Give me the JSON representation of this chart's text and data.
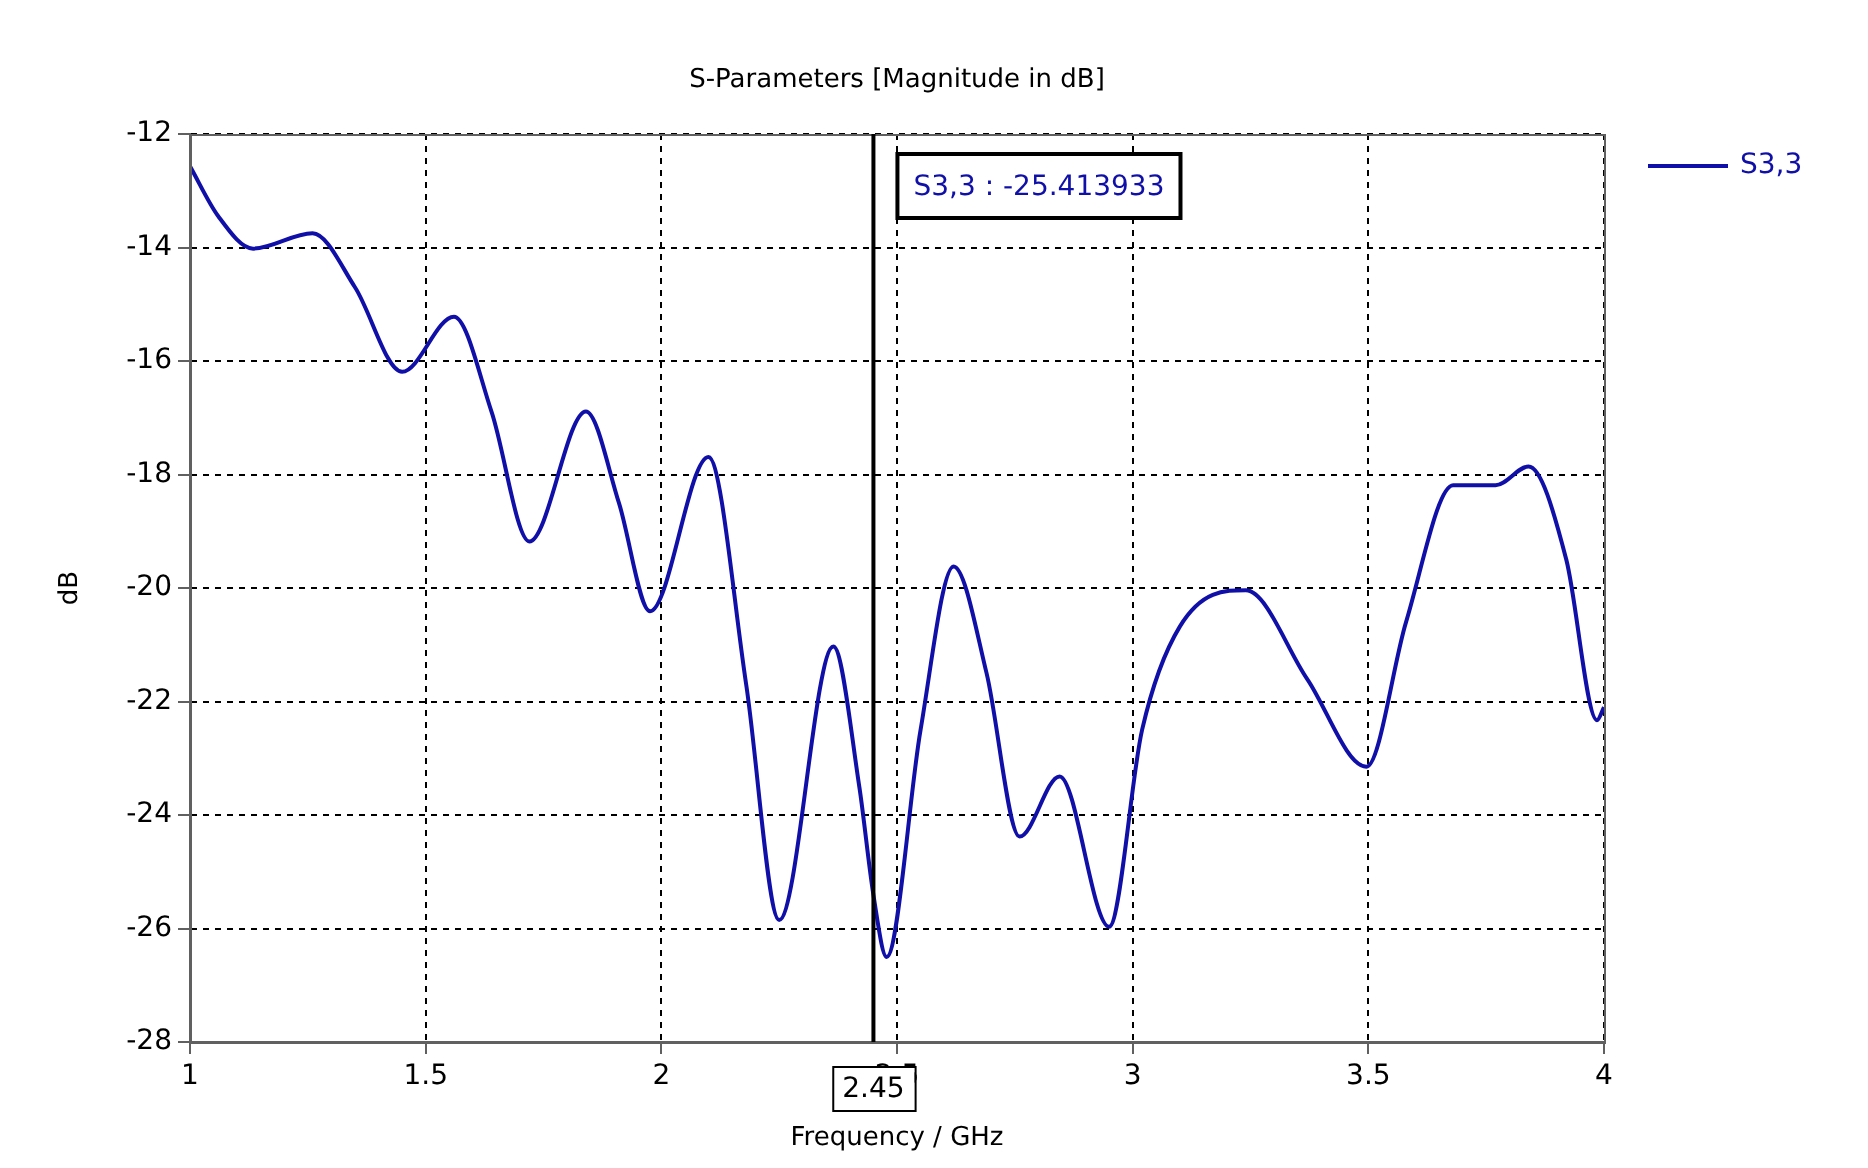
{
  "chart_data": {
    "type": "line",
    "title": "S-Parameters [Magnitude in dB]",
    "xlabel": "Frequency / GHz",
    "ylabel": "dB",
    "xlim": [
      1,
      4
    ],
    "xticks": [
      1,
      1.5,
      2,
      2.5,
      3,
      3.5,
      4
    ],
    "ylim": [
      -28,
      -12
    ],
    "yticks": [
      -28,
      -26,
      -24,
      -22,
      -20,
      -18,
      -16,
      -14,
      -12
    ],
    "grid": true,
    "legend": "top right",
    "marker": "none",
    "line_style": "solid",
    "series": [
      {
        "name": "S3,3",
        "color": "#1010a8",
        "x": [
          1.0,
          1.06,
          1.134,
          1.26,
          1.35,
          1.45,
          1.56,
          1.64,
          1.72,
          1.84,
          1.91,
          1.976,
          2.1,
          2.18,
          2.25,
          2.365,
          2.42,
          2.45,
          2.478,
          2.55,
          2.62,
          2.69,
          2.76,
          2.845,
          2.95,
          3.02,
          3.1,
          3.24,
          3.37,
          3.496,
          3.58,
          3.68,
          3.77,
          3.84,
          3.92,
          3.985,
          4.0
        ],
        "values": [
          -12.57,
          -13.45,
          -14.02,
          -13.75,
          -14.7,
          -16.19,
          -15.22,
          -16.9,
          -19.18,
          -16.89,
          -18.5,
          -20.41,
          -17.69,
          -21.7,
          -25.85,
          -21.03,
          -23.5,
          -25.41,
          -26.5,
          -22.5,
          -19.62,
          -21.5,
          -24.38,
          -23.32,
          -25.97,
          -22.5,
          -20.68,
          -20.04,
          -21.6,
          -23.15,
          -20.6,
          -18.19,
          -18.19,
          -17.86,
          -19.5,
          -22.33,
          -22.1
        ]
      }
    ],
    "ref_lines": [
      {
        "axis": "x",
        "value": 2.45,
        "label": "2.45",
        "color": "#000000",
        "line_style": "solid"
      }
    ],
    "annotations": [
      "S3,3 : -25.413933"
    ]
  }
}
